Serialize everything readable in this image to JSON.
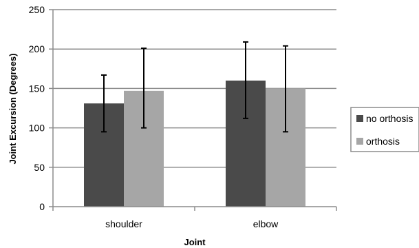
{
  "chart_data": {
    "type": "bar",
    "title": "",
    "xlabel": "Joint",
    "ylabel": "Joint Excursion (Degrees)",
    "categories": [
      "shoulder",
      "elbow"
    ],
    "ylim": [
      0,
      250
    ],
    "yticks": [
      0,
      50,
      100,
      150,
      200,
      250
    ],
    "grid": true,
    "legend_position": "right",
    "error_bars": true,
    "series": [
      {
        "name": "no orthosis",
        "color": "#4a4a4a",
        "values": [
          131,
          160
        ],
        "error_low": [
          95,
          112
        ],
        "error_high": [
          167,
          209
        ]
      },
      {
        "name": "orthosis",
        "color": "#a6a6a6",
        "values": [
          147,
          150
        ],
        "error_low": [
          100,
          95
        ],
        "error_high": [
          201,
          204
        ]
      }
    ]
  }
}
